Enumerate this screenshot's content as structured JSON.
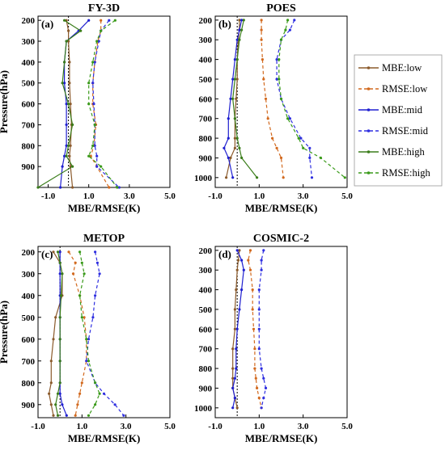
{
  "figure": {
    "series_styles": [
      {
        "name": "MBE:low",
        "color": "#8B5A2B",
        "dash": "",
        "marker": "circle"
      },
      {
        "name": "RMSE:low",
        "color": "#D2691E",
        "dash": "4,3",
        "marker": "circle"
      },
      {
        "name": "MBE:mid",
        "color": "#1F1FD0",
        "dash": "",
        "marker": "circle"
      },
      {
        "name": "RMSE:mid",
        "color": "#2E2EE0",
        "dash": "4,3",
        "marker": "circle"
      },
      {
        "name": "MBE:high",
        "color": "#3A7D1A",
        "dash": "",
        "marker": "circle"
      },
      {
        "name": "RMSE:high",
        "color": "#3A9A1A",
        "dash": "4,3",
        "marker": "circle"
      }
    ]
  },
  "chart_data": [
    {
      "type": "line",
      "panel_label": "(a)",
      "title": "FY-3D",
      "xlabel": "MBE/RMSE(K)",
      "ylabel": "Pressure(hPa)",
      "xlim": [
        -1.5,
        5.0
      ],
      "ylim": [
        1000,
        180
      ],
      "xticks": [
        "-1.0",
        "1.0",
        "3.0",
        "5.0"
      ],
      "xtick_values": [
        -1.0,
        1.0,
        3.0,
        5.0
      ],
      "yticks": [
        "200",
        "300",
        "400",
        "500",
        "600",
        "700",
        "800",
        "900"
      ],
      "ytick_values": [
        200,
        300,
        400,
        500,
        600,
        700,
        800,
        900
      ],
      "zero_line": 0,
      "y": [
        200,
        250,
        300,
        400,
        500,
        600,
        700,
        800,
        850,
        900,
        1000
      ],
      "series": [
        {
          "name": "MBE:low",
          "values": [
            -0.1,
            0.0,
            0.0,
            0.05,
            0.05,
            0.1,
            0.15,
            0.1,
            0.05,
            0.1,
            0.2
          ]
        },
        {
          "name": "RMSE:low",
          "values": [
            1.6,
            1.6,
            1.45,
            1.3,
            1.2,
            1.2,
            1.35,
            1.25,
            1.1,
            1.4,
            2.0
          ]
        },
        {
          "name": "MBE:mid",
          "values": [
            1.0,
            0.5,
            -0.1,
            -0.2,
            -0.2,
            -0.1,
            -0.1,
            -0.1,
            -0.2,
            -0.3,
            -0.4
          ]
        },
        {
          "name": "RMSE:mid",
          "values": [
            2.0,
            1.6,
            1.5,
            1.3,
            1.2,
            1.25,
            1.3,
            1.3,
            1.4,
            1.4,
            2.5
          ]
        },
        {
          "name": "MBE:high",
          "values": [
            -0.2,
            0.6,
            -0.1,
            -0.2,
            -0.3,
            0.0,
            0.2,
            0.0,
            -0.1,
            0.2,
            -1.5
          ]
        },
        {
          "name": "RMSE:high",
          "values": [
            2.3,
            1.6,
            1.4,
            1.2,
            1.0,
            1.0,
            1.3,
            1.2,
            1.0,
            1.6,
            2.4
          ]
        }
      ]
    },
    {
      "type": "line",
      "panel_label": "(b)",
      "title": "POES",
      "xlabel": "MBE/RMSE(K)",
      "ylabel": "",
      "xlim": [
        -1.0,
        5.0
      ],
      "ylim": [
        1050,
        180
      ],
      "xticks": [
        "-1.0",
        "1.0",
        "3.0",
        "5.0"
      ],
      "xtick_values": [
        -1.0,
        1.0,
        3.0,
        5.0
      ],
      "yticks": [
        "200",
        "300",
        "400",
        "500",
        "600",
        "700",
        "800",
        "900",
        "1000"
      ],
      "ytick_values": [
        200,
        300,
        400,
        500,
        600,
        700,
        800,
        900,
        1000
      ],
      "zero_line": 0,
      "y": [
        200,
        250,
        300,
        400,
        500,
        600,
        700,
        800,
        850,
        900,
        1000
      ],
      "series": [
        {
          "name": "MBE:low",
          "values": [
            0.1,
            0.1,
            0.05,
            0.0,
            0.0,
            -0.05,
            -0.1,
            -0.1,
            -0.1,
            -0.3,
            -0.5
          ]
        },
        {
          "name": "RMSE:low",
          "values": [
            1.1,
            1.1,
            1.1,
            1.15,
            1.2,
            1.3,
            1.4,
            1.6,
            1.8,
            2.0,
            2.1
          ]
        },
        {
          "name": "MBE:mid",
          "values": [
            0.2,
            0.1,
            0.0,
            -0.1,
            -0.2,
            -0.3,
            -0.4,
            -0.4,
            -0.6,
            -0.4,
            -0.2
          ]
        },
        {
          "name": "RMSE:mid",
          "values": [
            2.6,
            2.4,
            2.0,
            1.8,
            1.8,
            2.0,
            2.4,
            2.9,
            3.3,
            3.3,
            3.4
          ]
        },
        {
          "name": "MBE:high",
          "values": [
            0.3,
            0.2,
            0.1,
            0.0,
            -0.1,
            -0.2,
            -0.1,
            0.0,
            0.1,
            0.2,
            0.9
          ]
        },
        {
          "name": "RMSE:high",
          "values": [
            2.3,
            2.2,
            2.0,
            1.9,
            1.9,
            2.0,
            2.3,
            2.8,
            3.0,
            3.8,
            4.9
          ]
        }
      ]
    },
    {
      "type": "line",
      "panel_label": "(c)",
      "title": "METOP",
      "xlabel": "MBE/RMSE(K)",
      "ylabel": "Pressure(hPa)",
      "xlim": [
        -1.0,
        5.0
      ],
      "ylim": [
        960,
        175
      ],
      "xticks": [
        "-1.0",
        "1.0",
        "3.0",
        "5.0"
      ],
      "xtick_values": [
        -1.0,
        1.0,
        3.0,
        5.0
      ],
      "yticks": [
        "200",
        "300",
        "400",
        "500",
        "600",
        "700",
        "800",
        "900"
      ],
      "ytick_values": [
        200,
        300,
        400,
        500,
        600,
        700,
        800,
        900
      ],
      "zero_line": 0,
      "y": [
        200,
        250,
        300,
        400,
        500,
        600,
        700,
        800,
        850,
        900,
        950
      ],
      "series": [
        {
          "name": "MBE:low",
          "values": [
            -0.3,
            0.0,
            0.1,
            0.1,
            -0.2,
            -0.3,
            -0.4,
            -0.4,
            -0.5,
            -0.4,
            -0.3
          ]
        },
        {
          "name": "RMSE:low",
          "values": [
            0.4,
            0.7,
            0.6,
            0.9,
            1.1,
            1.2,
            1.2,
            1.0,
            0.9,
            0.8,
            0.7
          ]
        },
        {
          "name": "MBE:mid",
          "values": [
            0.0,
            0.0,
            0.0,
            0.0,
            0.0,
            0.0,
            0.0,
            0.0,
            0.0,
            0.1,
            0.3
          ]
        },
        {
          "name": "RMSE:mid",
          "values": [
            1.6,
            1.7,
            1.8,
            1.6,
            1.5,
            1.3,
            1.2,
            1.6,
            2.0,
            2.5,
            2.9
          ]
        },
        {
          "name": "MBE:high",
          "values": [
            -0.1,
            0.0,
            0.1,
            0.05,
            0.0,
            0.0,
            0.0,
            0.0,
            -0.1,
            -0.2,
            -0.1
          ]
        },
        {
          "name": "RMSE:high",
          "values": [
            0.9,
            1.0,
            1.1,
            0.9,
            1.0,
            1.2,
            1.3,
            1.6,
            1.8,
            1.6,
            1.3
          ]
        }
      ]
    },
    {
      "type": "line",
      "panel_label": "(d)",
      "title": "COSMIC-2",
      "xlabel": "MBE/RMSE(K)",
      "ylabel": "",
      "xlim": [
        -1.0,
        5.0
      ],
      "ylim": [
        1050,
        180
      ],
      "xticks": [
        "-1.0",
        "1.0",
        "3.0",
        "5.0"
      ],
      "xtick_values": [
        -1.0,
        1.0,
        3.0,
        5.0
      ],
      "yticks": [
        "200",
        "300",
        "400",
        "500",
        "600",
        "700",
        "800",
        "900",
        "1000"
      ],
      "ytick_values": [
        200,
        300,
        400,
        500,
        600,
        700,
        800,
        900,
        1000
      ],
      "zero_line": 0,
      "y": [
        200,
        250,
        300,
        400,
        500,
        600,
        700,
        800,
        850,
        900,
        950,
        1000
      ],
      "series": [
        {
          "name": "MBE:low",
          "values": [
            0.1,
            0.05,
            0.0,
            -0.05,
            -0.1,
            -0.1,
            -0.2,
            -0.2,
            -0.2,
            -0.2,
            -0.1,
            0.0
          ]
        },
        {
          "name": "RMSE:low",
          "values": [
            0.6,
            0.5,
            0.6,
            0.7,
            0.7,
            0.75,
            0.8,
            0.8,
            0.85,
            0.9,
            1.0,
            1.1
          ]
        },
        {
          "name": "MBE:mid",
          "values": [
            0.0,
            0.2,
            0.3,
            0.2,
            0.1,
            0.0,
            -0.05,
            -0.05,
            -0.1,
            -0.2,
            -0.1,
            -0.2
          ]
        },
        {
          "name": "RMSE:mid",
          "values": [
            1.2,
            1.1,
            1.1,
            1.0,
            1.0,
            1.0,
            1.0,
            1.1,
            1.2,
            1.3,
            1.2,
            1.1
          ]
        }
      ]
    }
  ]
}
